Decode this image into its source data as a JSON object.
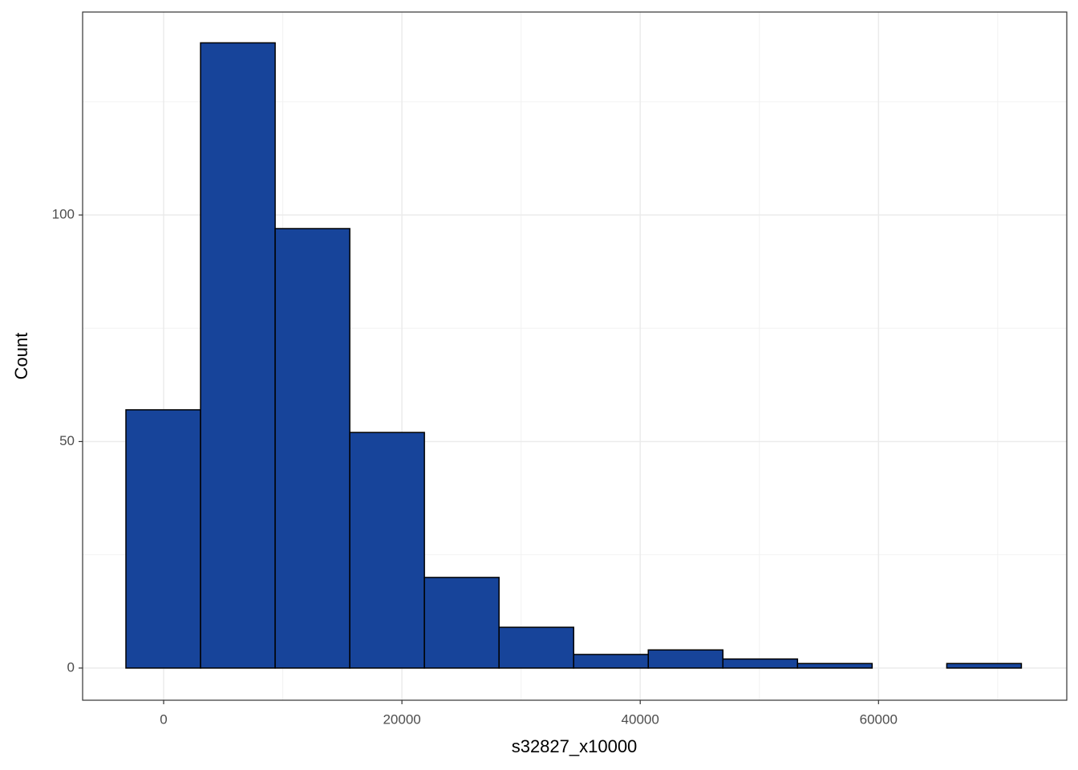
{
  "chart_data": {
    "type": "histogram",
    "x_label": "s32827_x10000",
    "y_label": "Count",
    "bins": [
      -3165,
      3098,
      9361,
      15624,
      21887,
      28150,
      34413,
      40676,
      46939,
      53202,
      59465,
      65728,
      71991
    ],
    "values": [
      57,
      138,
      97,
      52,
      20,
      9,
      3,
      4,
      2,
      1,
      0,
      1
    ],
    "color": "#17449a",
    "edge_color": "#000000",
    "xlim": [
      -6800,
      75800
    ],
    "ylim": [
      -7.1,
      144.8
    ],
    "xticks": [
      0,
      20000,
      40000,
      60000
    ],
    "yticks": [
      0,
      50,
      100
    ],
    "xminor_ticks": [
      10000,
      30000,
      50000,
      70000
    ],
    "yminor_ticks": [
      25,
      75,
      125
    ],
    "grid": true
  }
}
